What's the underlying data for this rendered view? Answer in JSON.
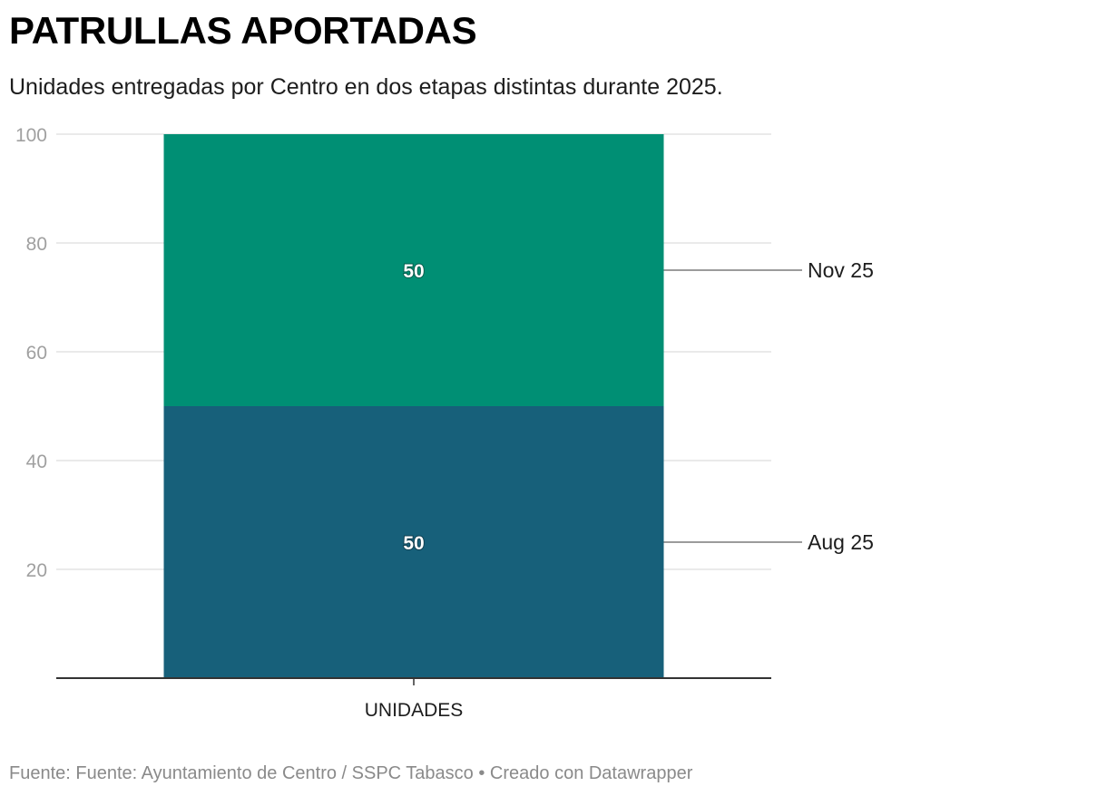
{
  "header": {
    "title": "PATRULLAS APORTADAS",
    "subtitle": "Unidades entregadas por Centro en dos etapas distintas durante 2025."
  },
  "footer": {
    "text": "Fuente: Fuente: Ayuntamiento de Centro / SSPC Tabasco • Creado con Datawrapper"
  },
  "chart_data": {
    "type": "bar",
    "stacked": true,
    "categories": [
      "UNIDADES"
    ],
    "series": [
      {
        "name": "Aug 25",
        "values": [
          50
        ],
        "color": "#17607a"
      },
      {
        "name": "Nov 25",
        "values": [
          50
        ],
        "color": "#008f74"
      }
    ],
    "title": "PATRULLAS APORTADAS",
    "subtitle": "Unidades entregadas por Centro en dos etapas distintas durante 2025.",
    "xlabel": "",
    "ylabel": "",
    "ylim": [
      0,
      100
    ],
    "yticks": [
      20,
      40,
      60,
      80,
      100
    ],
    "grid": true,
    "legend": "direct-labels-right"
  }
}
